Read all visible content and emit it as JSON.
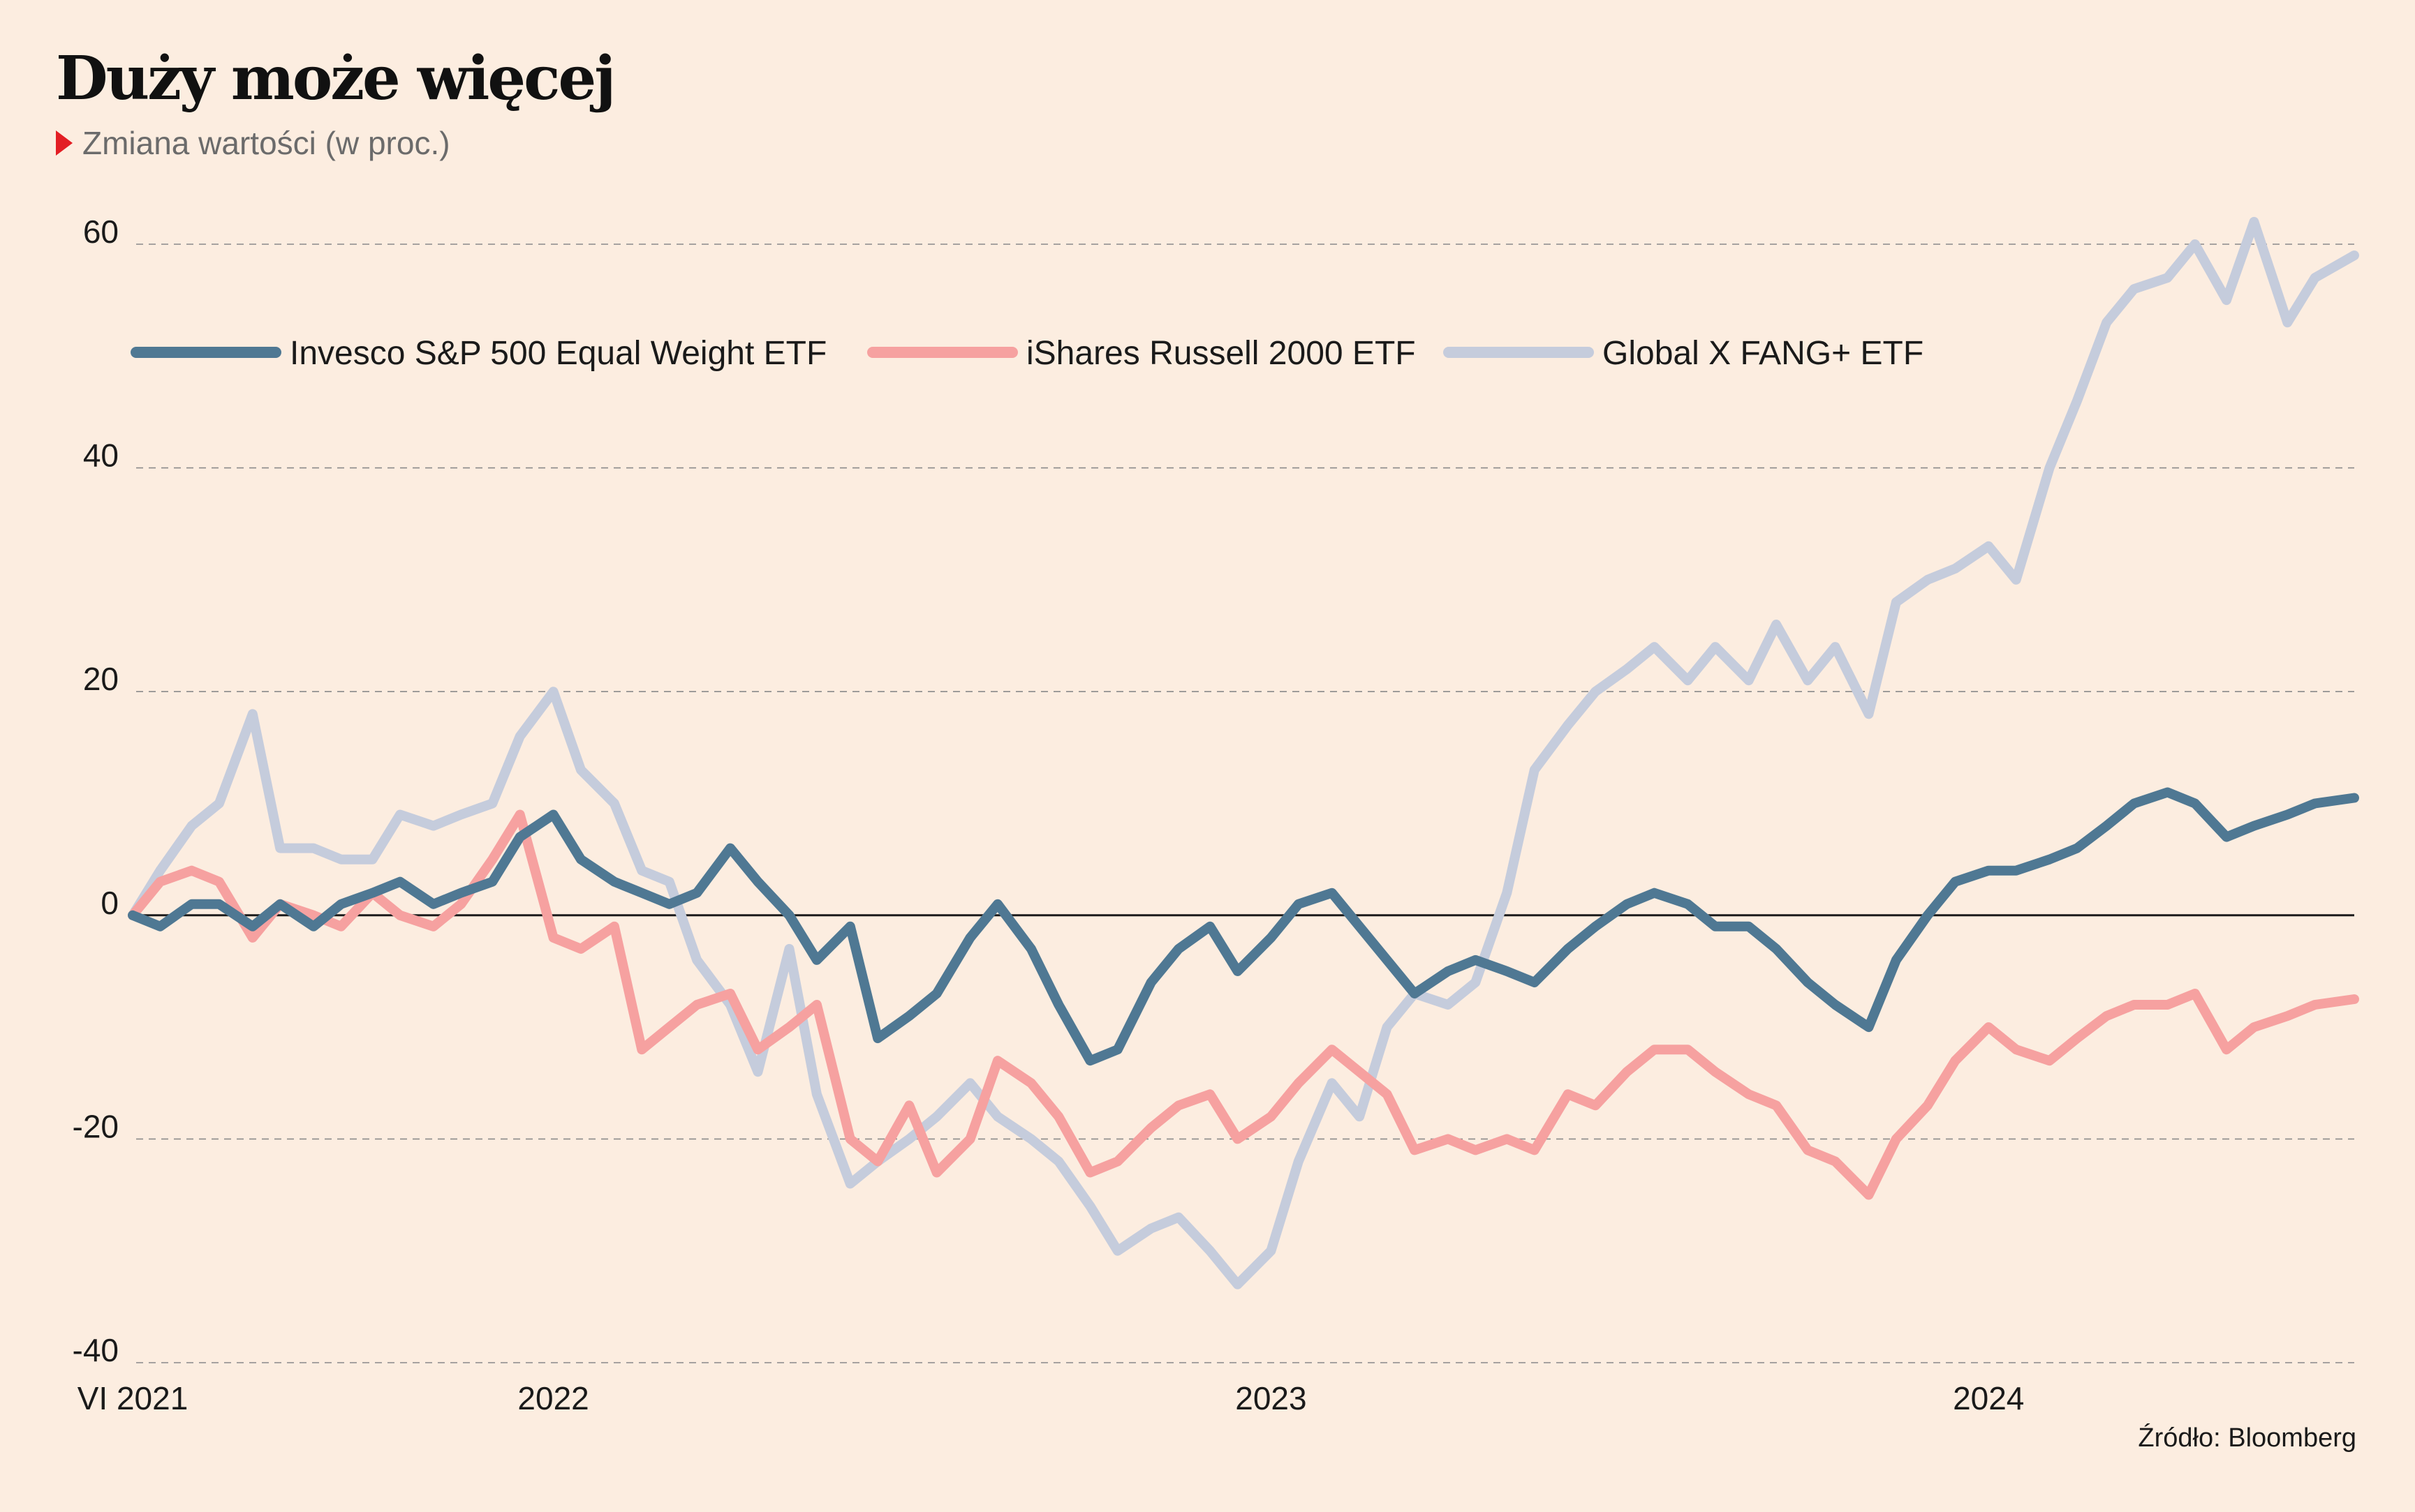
{
  "title": "Duży może więcej",
  "subtitle": "Zmiana wartości (w proc.)",
  "source": "Źródło: Bloomberg",
  "colors": {
    "background": "#fcede0",
    "invesco": "#4f7893",
    "russell": "#f6a1a0",
    "fang": "#c5ccdc",
    "subtitle_marker": "#e31e24"
  },
  "chart_data": {
    "type": "line",
    "title": "Duży może więcej",
    "subtitle": "Zmiana wartości (w proc.)",
    "ylim": [
      -40,
      62
    ],
    "yticks": [
      60,
      40,
      20,
      0,
      -20,
      -40
    ],
    "ytick_labels": [
      "60",
      "40",
      "20",
      "0",
      "-20",
      "-40"
    ],
    "xlim": [
      "2021-06-01",
      "2024-07-05"
    ],
    "xticks": [
      {
        "date": "2021-06-01",
        "label": "VI 2021"
      },
      {
        "date": "2022-01-01",
        "label": "2022"
      },
      {
        "date": "2023-01-01",
        "label": "2023"
      },
      {
        "date": "2024-01-01",
        "label": "2024"
      }
    ],
    "grid": "horizontal dashed",
    "legend_position": "top-left",
    "series": [
      {
        "name": "Invesco S&P 500 Equal Weight ETF",
        "color": "#4f7893",
        "points": [
          [
            "2021-06-01",
            0
          ],
          [
            "2021-06-15",
            -1
          ],
          [
            "2021-07-01",
            1
          ],
          [
            "2021-07-15",
            1
          ],
          [
            "2021-08-01",
            -1
          ],
          [
            "2021-08-15",
            1
          ],
          [
            "2021-09-01",
            -1
          ],
          [
            "2021-09-15",
            1
          ],
          [
            "2021-10-01",
            2
          ],
          [
            "2021-10-15",
            3
          ],
          [
            "2021-11-01",
            1
          ],
          [
            "2021-11-15",
            2
          ],
          [
            "2021-12-01",
            3
          ],
          [
            "2021-12-15",
            7
          ],
          [
            "2022-01-01",
            9
          ],
          [
            "2022-01-15",
            5
          ],
          [
            "2022-02-01",
            3
          ],
          [
            "2022-02-15",
            2
          ],
          [
            "2022-03-01",
            1
          ],
          [
            "2022-03-15",
            2
          ],
          [
            "2022-04-01",
            6
          ],
          [
            "2022-04-15",
            3
          ],
          [
            "2022-05-01",
            0
          ],
          [
            "2022-05-15",
            -4
          ],
          [
            "2022-06-01",
            -1
          ],
          [
            "2022-06-15",
            -11
          ],
          [
            "2022-07-01",
            -9
          ],
          [
            "2022-07-15",
            -7
          ],
          [
            "2022-08-01",
            -2
          ],
          [
            "2022-08-15",
            1
          ],
          [
            "2022-09-01",
            -3
          ],
          [
            "2022-09-15",
            -8
          ],
          [
            "2022-10-01",
            -13
          ],
          [
            "2022-10-15",
            -12
          ],
          [
            "2022-11-01",
            -6
          ],
          [
            "2022-11-15",
            -3
          ],
          [
            "2022-12-01",
            -1
          ],
          [
            "2022-12-15",
            -5
          ],
          [
            "2023-01-01",
            -2
          ],
          [
            "2023-01-15",
            1
          ],
          [
            "2023-02-01",
            2
          ],
          [
            "2023-02-15",
            -1
          ],
          [
            "2023-03-01",
            -4
          ],
          [
            "2023-03-15",
            -7
          ],
          [
            "2023-04-01",
            -5
          ],
          [
            "2023-04-15",
            -4
          ],
          [
            "2023-05-01",
            -5
          ],
          [
            "2023-05-15",
            -6
          ],
          [
            "2023-06-01",
            -3
          ],
          [
            "2023-06-15",
            -1
          ],
          [
            "2023-07-01",
            1
          ],
          [
            "2023-07-15",
            2
          ],
          [
            "2023-08-01",
            1
          ],
          [
            "2023-08-15",
            -1
          ],
          [
            "2023-09-01",
            -1
          ],
          [
            "2023-09-15",
            -3
          ],
          [
            "2023-10-01",
            -6
          ],
          [
            "2023-10-15",
            -8
          ],
          [
            "2023-11-01",
            -10
          ],
          [
            "2023-11-15",
            -4
          ],
          [
            "2023-12-01",
            0
          ],
          [
            "2023-12-15",
            3
          ],
          [
            "2024-01-01",
            4
          ],
          [
            "2024-01-15",
            4
          ],
          [
            "2024-02-01",
            5
          ],
          [
            "2024-02-15",
            6
          ],
          [
            "2024-03-01",
            8
          ],
          [
            "2024-03-15",
            10
          ],
          [
            "2024-04-01",
            11
          ],
          [
            "2024-04-15",
            10
          ],
          [
            "2024-05-01",
            7
          ],
          [
            "2024-05-15",
            8
          ],
          [
            "2024-06-01",
            9
          ],
          [
            "2024-06-15",
            10
          ],
          [
            "2024-07-05",
            10.5
          ]
        ]
      },
      {
        "name": "iShares Russell 2000 ETF",
        "color": "#f6a1a0",
        "points": [
          [
            "2021-06-01",
            0
          ],
          [
            "2021-06-15",
            3
          ],
          [
            "2021-07-01",
            4
          ],
          [
            "2021-07-15",
            3
          ],
          [
            "2021-08-01",
            -2
          ],
          [
            "2021-08-15",
            1
          ],
          [
            "2021-09-01",
            0
          ],
          [
            "2021-09-15",
            -1
          ],
          [
            "2021-10-01",
            2
          ],
          [
            "2021-10-15",
            0
          ],
          [
            "2021-11-01",
            -1
          ],
          [
            "2021-11-15",
            1
          ],
          [
            "2021-12-01",
            5
          ],
          [
            "2021-12-15",
            9
          ],
          [
            "2022-01-01",
            -2
          ],
          [
            "2022-01-15",
            -3
          ],
          [
            "2022-02-01",
            -1
          ],
          [
            "2022-02-15",
            -12
          ],
          [
            "2022-03-01",
            -10
          ],
          [
            "2022-03-15",
            -8
          ],
          [
            "2022-04-01",
            -7
          ],
          [
            "2022-04-15",
            -12
          ],
          [
            "2022-05-01",
            -10
          ],
          [
            "2022-05-15",
            -8
          ],
          [
            "2022-06-01",
            -20
          ],
          [
            "2022-06-15",
            -22
          ],
          [
            "2022-07-01",
            -17
          ],
          [
            "2022-07-15",
            -23
          ],
          [
            "2022-08-01",
            -20
          ],
          [
            "2022-08-15",
            -13
          ],
          [
            "2022-09-01",
            -15
          ],
          [
            "2022-09-15",
            -18
          ],
          [
            "2022-10-01",
            -23
          ],
          [
            "2022-10-15",
            -22
          ],
          [
            "2022-11-01",
            -19
          ],
          [
            "2022-11-15",
            -17
          ],
          [
            "2022-12-01",
            -16
          ],
          [
            "2022-12-15",
            -20
          ],
          [
            "2023-01-01",
            -18
          ],
          [
            "2023-01-15",
            -15
          ],
          [
            "2023-02-01",
            -12
          ],
          [
            "2023-02-15",
            -14
          ],
          [
            "2023-03-01",
            -16
          ],
          [
            "2023-03-15",
            -21
          ],
          [
            "2023-04-01",
            -20
          ],
          [
            "2023-04-15",
            -21
          ],
          [
            "2023-05-01",
            -20
          ],
          [
            "2023-05-15",
            -21
          ],
          [
            "2023-06-01",
            -16
          ],
          [
            "2023-06-15",
            -17
          ],
          [
            "2023-07-01",
            -14
          ],
          [
            "2023-07-15",
            -12
          ],
          [
            "2023-08-01",
            -12
          ],
          [
            "2023-08-15",
            -14
          ],
          [
            "2023-09-01",
            -16
          ],
          [
            "2023-09-15",
            -17
          ],
          [
            "2023-10-01",
            -21
          ],
          [
            "2023-10-15",
            -22
          ],
          [
            "2023-11-01",
            -25
          ],
          [
            "2023-11-15",
            -20
          ],
          [
            "2023-12-01",
            -17
          ],
          [
            "2023-12-15",
            -13
          ],
          [
            "2024-01-01",
            -10
          ],
          [
            "2024-01-15",
            -12
          ],
          [
            "2024-02-01",
            -13
          ],
          [
            "2024-02-15",
            -11
          ],
          [
            "2024-03-01",
            -9
          ],
          [
            "2024-03-15",
            -8
          ],
          [
            "2024-04-01",
            -8
          ],
          [
            "2024-04-15",
            -7
          ],
          [
            "2024-05-01",
            -12
          ],
          [
            "2024-05-15",
            -10
          ],
          [
            "2024-06-01",
            -9
          ],
          [
            "2024-06-15",
            -8
          ],
          [
            "2024-07-05",
            -7.5
          ]
        ]
      },
      {
        "name": "Global X FANG+ ETF",
        "color": "#c5ccdc",
        "points": [
          [
            "2021-06-01",
            0
          ],
          [
            "2021-06-15",
            4
          ],
          [
            "2021-07-01",
            8
          ],
          [
            "2021-07-15",
            10
          ],
          [
            "2021-08-01",
            18
          ],
          [
            "2021-08-15",
            6
          ],
          [
            "2021-09-01",
            6
          ],
          [
            "2021-09-15",
            5
          ],
          [
            "2021-10-01",
            5
          ],
          [
            "2021-10-15",
            9
          ],
          [
            "2021-11-01",
            8
          ],
          [
            "2021-11-15",
            9
          ],
          [
            "2021-12-01",
            10
          ],
          [
            "2021-12-15",
            16
          ],
          [
            "2022-01-01",
            20
          ],
          [
            "2022-01-15",
            13
          ],
          [
            "2022-02-01",
            10
          ],
          [
            "2022-02-15",
            4
          ],
          [
            "2022-03-01",
            3
          ],
          [
            "2022-03-15",
            -4
          ],
          [
            "2022-04-01",
            -8
          ],
          [
            "2022-04-15",
            -14
          ],
          [
            "2022-05-01",
            -3
          ],
          [
            "2022-05-15",
            -16
          ],
          [
            "2022-06-01",
            -24
          ],
          [
            "2022-06-15",
            -22
          ],
          [
            "2022-07-01",
            -20
          ],
          [
            "2022-07-15",
            -18
          ],
          [
            "2022-08-01",
            -15
          ],
          [
            "2022-08-15",
            -18
          ],
          [
            "2022-09-01",
            -20
          ],
          [
            "2022-09-15",
            -22
          ],
          [
            "2022-10-01",
            -26
          ],
          [
            "2022-10-15",
            -30
          ],
          [
            "2022-11-01",
            -28
          ],
          [
            "2022-11-15",
            -27
          ],
          [
            "2022-12-01",
            -30
          ],
          [
            "2022-12-15",
            -33
          ],
          [
            "2023-01-01",
            -30
          ],
          [
            "2023-01-15",
            -22
          ],
          [
            "2023-02-01",
            -15
          ],
          [
            "2023-02-15",
            -18
          ],
          [
            "2023-03-01",
            -10
          ],
          [
            "2023-03-15",
            -7
          ],
          [
            "2023-04-01",
            -8
          ],
          [
            "2023-04-15",
            -6
          ],
          [
            "2023-05-01",
            2
          ],
          [
            "2023-05-15",
            13
          ],
          [
            "2023-06-01",
            17
          ],
          [
            "2023-06-15",
            20
          ],
          [
            "2023-07-01",
            22
          ],
          [
            "2023-07-15",
            24
          ],
          [
            "2023-08-01",
            21
          ],
          [
            "2023-08-15",
            24
          ],
          [
            "2023-09-01",
            21
          ],
          [
            "2023-09-15",
            26
          ],
          [
            "2023-10-01",
            21
          ],
          [
            "2023-10-15",
            24
          ],
          [
            "2023-11-01",
            18
          ],
          [
            "2023-11-15",
            28
          ],
          [
            "2023-12-01",
            30
          ],
          [
            "2023-12-15",
            31
          ],
          [
            "2024-01-01",
            33
          ],
          [
            "2024-01-15",
            30
          ],
          [
            "2024-02-01",
            40
          ],
          [
            "2024-02-15",
            46
          ],
          [
            "2024-03-01",
            53
          ],
          [
            "2024-03-15",
            56
          ],
          [
            "2024-04-01",
            57
          ],
          [
            "2024-04-15",
            60
          ],
          [
            "2024-05-01",
            55
          ],
          [
            "2024-05-15",
            62
          ],
          [
            "2024-06-01",
            53
          ],
          [
            "2024-06-15",
            57
          ],
          [
            "2024-07-05",
            59
          ]
        ]
      }
    ]
  }
}
